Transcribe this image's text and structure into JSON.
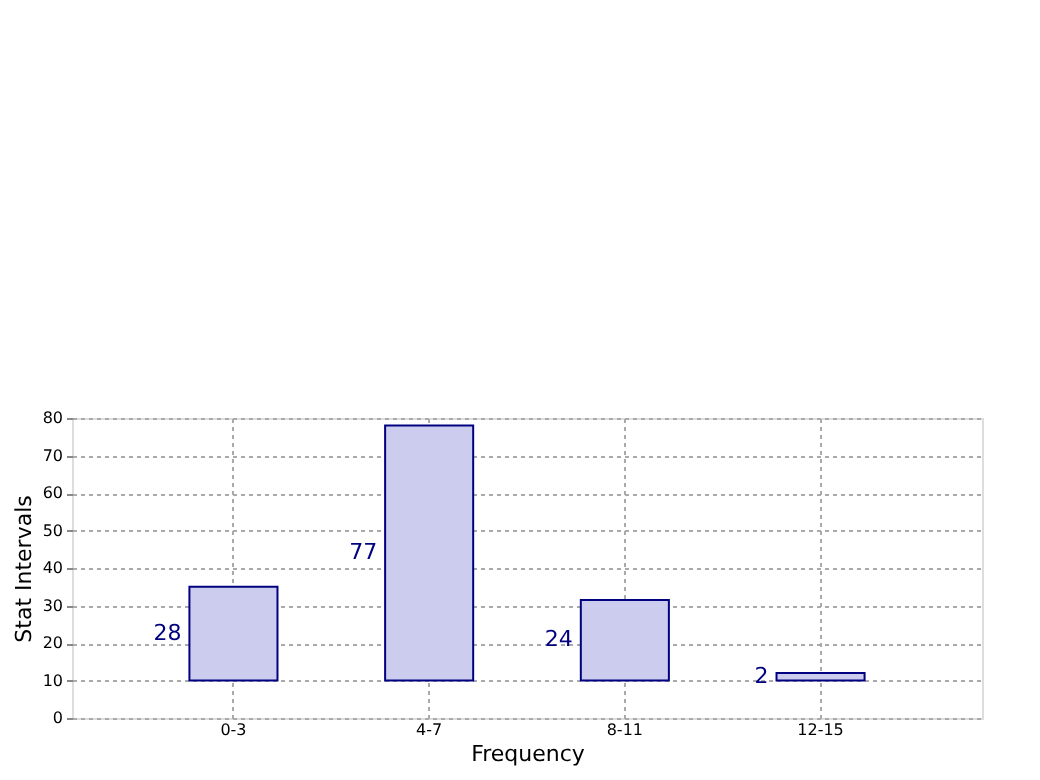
{
  "chart_data": {
    "type": "bar",
    "xlabel": "Frequency",
    "ylabel": "Stat Intervals",
    "categories": [
      "0-3",
      "4-7",
      "8-11",
      "12-15"
    ],
    "base": [
      10,
      10,
      10,
      10
    ],
    "values": [
      25,
      68,
      21.5,
      2
    ],
    "annotations": [
      "28",
      "77",
      "24",
      "2"
    ],
    "color": "#ccccee",
    "ylim": [
      0,
      80
    ],
    "yticks": [
      0,
      10,
      20,
      30,
      40,
      50,
      60,
      70,
      80
    ],
    "grid": true,
    "line_style": "dotted"
  }
}
